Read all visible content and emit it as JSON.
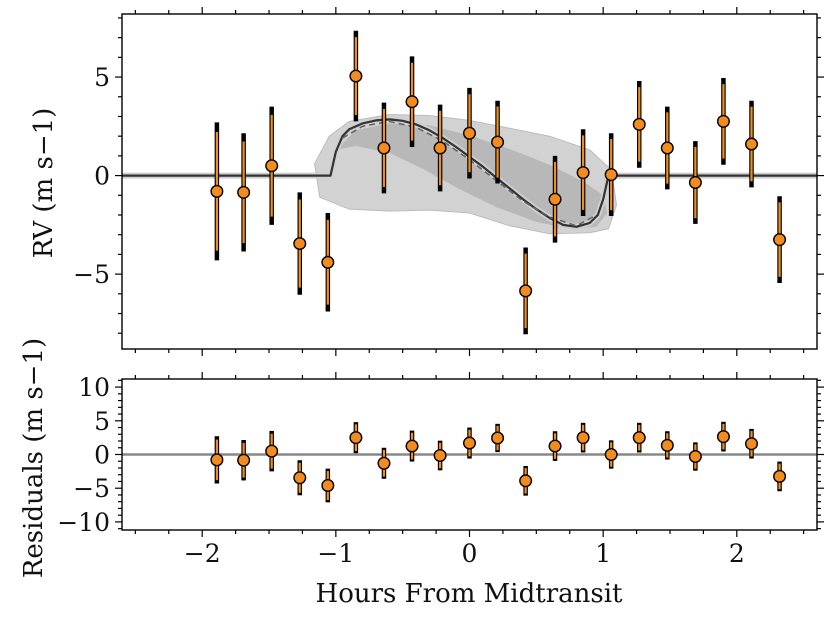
{
  "chart_data": [
    {
      "type": "scatter",
      "panel": "rv",
      "xlabel": "",
      "ylabel": "RV (m s−1)",
      "xlim": [
        -2.6,
        2.6
      ],
      "ylim": [
        -8.8,
        8.2
      ],
      "y_ticks": [
        -5,
        0,
        5
      ],
      "x_ticks": [
        -2,
        -1,
        0,
        1,
        2
      ],
      "grid": false,
      "series": [
        {
          "kind": "points",
          "color": "#f28c1f",
          "x": [
            -1.89,
            -1.69,
            -1.48,
            -1.27,
            -1.06,
            -0.85,
            -0.64,
            -0.43,
            -0.22,
            0.0,
            0.21,
            0.42,
            0.64,
            0.85,
            1.06,
            1.27,
            1.48,
            1.69,
            1.9,
            2.11,
            2.32
          ],
          "y": [
            -0.8,
            -0.85,
            0.5,
            -3.45,
            -4.4,
            5.05,
            1.4,
            3.75,
            1.4,
            2.15,
            1.7,
            -5.85,
            -1.2,
            0.15,
            0.05,
            2.6,
            1.4,
            -0.35,
            2.75,
            1.6,
            -3.25
          ],
          "err": [
            3.5,
            3.0,
            3.0,
            2.6,
            2.5,
            2.3,
            2.3,
            2.3,
            2.2,
            2.3,
            2.1,
            2.2,
            2.2,
            2.2,
            2.1,
            2.2,
            2.1,
            2.1,
            2.2,
            2.2,
            2.2
          ]
        },
        {
          "kind": "model",
          "color": "#333333",
          "x": [
            -2.6,
            -1.04,
            -1.0,
            -0.95,
            -0.9,
            -0.8,
            -0.7,
            -0.6,
            -0.5,
            -0.4,
            -0.3,
            -0.2,
            -0.1,
            0.0,
            0.1,
            0.2,
            0.3,
            0.4,
            0.5,
            0.6,
            0.7,
            0.8,
            0.9,
            0.96,
            1.0,
            1.04,
            2.6
          ],
          "y": [
            0.0,
            0.0,
            1.2,
            2.0,
            2.35,
            2.65,
            2.8,
            2.85,
            2.78,
            2.6,
            2.3,
            1.9,
            1.45,
            0.95,
            0.45,
            -0.1,
            -0.65,
            -1.2,
            -1.7,
            -2.15,
            -2.5,
            -2.6,
            -2.4,
            -2.0,
            -1.2,
            0.0,
            0.0
          ]
        },
        {
          "kind": "model-dashed",
          "color": "#666666",
          "x": [
            -0.95,
            -0.8,
            -0.6,
            -0.4,
            -0.2,
            0.0,
            0.2,
            0.4,
            0.6,
            0.8,
            0.95
          ],
          "y": [
            1.9,
            2.5,
            2.75,
            2.45,
            1.75,
            0.8,
            -0.25,
            -1.3,
            -2.1,
            -2.55,
            -2.0
          ]
        },
        {
          "kind": "band-outer",
          "color": "#d2d2d2",
          "x": [
            -1.16,
            -1.05,
            -0.9,
            -0.6,
            -0.3,
            0.0,
            0.3,
            0.6,
            0.9,
            1.06,
            1.08,
            1.1,
            1.04,
            0.9,
            0.6,
            0.3,
            0.0,
            -0.3,
            -0.6,
            -0.9,
            -1.12
          ],
          "y": [
            0.6,
            2.0,
            2.75,
            3.1,
            3.05,
            2.8,
            2.4,
            2.0,
            1.3,
            0.3,
            -0.5,
            -1.5,
            -2.7,
            -2.9,
            -2.95,
            -2.55,
            -1.9,
            -1.75,
            -1.8,
            -1.7,
            -1.1
          ]
        },
        {
          "kind": "band-inner",
          "color": "#b4b4b4",
          "x": [
            -1.0,
            -0.85,
            -0.6,
            -0.3,
            0.0,
            0.3,
            0.6,
            0.85,
            1.0,
            1.03,
            0.95,
            0.75,
            0.5,
            0.2,
            -0.1,
            -0.35,
            -0.6,
            -0.85,
            -1.0
          ],
          "y": [
            1.3,
            2.3,
            2.65,
            2.55,
            2.05,
            1.35,
            0.55,
            -0.3,
            -1.0,
            -1.9,
            -2.6,
            -2.7,
            -2.35,
            -1.6,
            -0.6,
            0.35,
            1.15,
            1.5,
            1.3
          ]
        }
      ]
    },
    {
      "type": "scatter",
      "panel": "residuals",
      "xlabel": "Hours From Midtransit",
      "ylabel": "Residuals (m s−1)",
      "xlim": [
        -2.6,
        2.6
      ],
      "ylim": [
        -11.2,
        11.2
      ],
      "y_ticks": [
        -10,
        -5,
        0,
        5,
        10
      ],
      "x_ticks": [
        -2,
        -1,
        0,
        1,
        2
      ],
      "zero_line": 0,
      "grid": false,
      "series": [
        {
          "kind": "points",
          "color": "#f28c1f",
          "x": [
            -1.89,
            -1.69,
            -1.48,
            -1.27,
            -1.06,
            -0.85,
            -0.64,
            -0.43,
            -0.22,
            0.0,
            0.21,
            0.42,
            0.64,
            0.85,
            1.06,
            1.27,
            1.48,
            1.69,
            1.9,
            2.11,
            2.32
          ],
          "y": [
            -0.8,
            -0.85,
            0.5,
            -3.45,
            -4.6,
            2.5,
            -1.3,
            1.25,
            -0.15,
            1.7,
            2.45,
            -3.9,
            1.25,
            2.5,
            0.0,
            2.5,
            1.35,
            -0.3,
            2.65,
            1.6,
            -3.25
          ],
          "err": [
            3.5,
            3.0,
            3.0,
            2.6,
            2.5,
            2.3,
            2.3,
            2.3,
            2.2,
            2.3,
            2.1,
            2.2,
            2.2,
            2.2,
            2.1,
            2.2,
            2.1,
            2.1,
            2.2,
            2.2,
            2.2
          ]
        }
      ]
    }
  ]
}
